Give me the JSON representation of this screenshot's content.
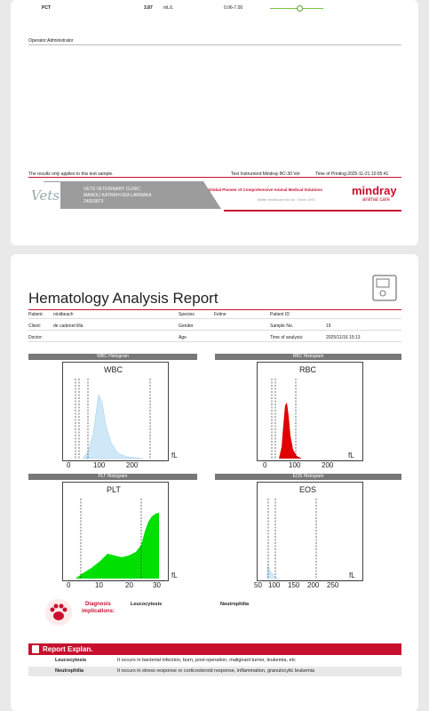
{
  "page1": {
    "pct_row": {
      "name": "PCT",
      "value": "3.87",
      "unit": "mL/L",
      "range": "0.06-7.00",
      "level": 0.55
    },
    "operator": "Operator:Administrator",
    "disclaimer": "The results only applies to this test sample.",
    "instrument": "Test Instrument:Mindray BC-30 Vet",
    "printing_time": "Time of Printing:2025-11-21 10:05:41",
    "clinic_line1": "VETS VETERINARY CLINIC",
    "clinic_line2": "MANOLI KATRAHI 82A LARNAKA",
    "clinic_line3": "24053873",
    "logo_text": "Vets",
    "tagline": "Global Pioneer of Comprehensive Animal Medical Solutions",
    "tagline2": "Better healthcare for all · Since 1991",
    "brand": "mindray",
    "brand_sub": "animal care"
  },
  "page2": {
    "title": "Hematology Analysis Report",
    "info": {
      "patient_label": "Patient:",
      "patient": "niniibeach",
      "client_label": "Client:",
      "client": "de cadenet lilla",
      "doctor_label": "Doctor:",
      "species_label": "Species",
      "species": "Feline",
      "gender_label": "Gender",
      "age_label": "Age",
      "patient_id_label": "Patient ID",
      "sample_label": "Sample No.",
      "sample": "19",
      "time_label": "Time of analysis:",
      "time": "2025/11/16 15:13"
    },
    "histograms": {
      "wbc": {
        "header": "WBC Histogram",
        "title": "WBC",
        "ticks": [
          "0",
          "100",
          "200"
        ],
        "unit": "fL"
      },
      "rbc": {
        "header": "RBC Histogram",
        "title": "RBC",
        "ticks": [
          "0",
          "100",
          "200"
        ],
        "unit": "fL"
      },
      "plt": {
        "header": "PLT Histogram",
        "title": "PLT",
        "ticks": [
          "0",
          "10",
          "20",
          "30"
        ],
        "unit": "fL"
      },
      "eos": {
        "header": "EOS Histogram",
        "title": "EOS",
        "ticks": [
          "50",
          "100",
          "150",
          "200",
          "250"
        ],
        "unit": "fL"
      }
    },
    "diagnosis": {
      "label_line1": "Diagnosis",
      "label_line2": "implications:",
      "item1": "Leucocytosis",
      "item2": "Neutrophilia"
    },
    "explan": {
      "title": "Report Explan.",
      "rows": [
        {
          "term": "Leucocytosis",
          "text": "It occurs in bacterial infection, burn, post-operation, malignant tumor, leukemia, etc"
        },
        {
          "term": "Neutrophilia",
          "text": "It occurs in stress response or corticosteroid response, inflammation, granulocytic leukemia"
        }
      ]
    },
    "colors": {
      "accent": "#c8102e",
      "wbc_fill": "#cfe8f8",
      "rbc_fill": "#e00000",
      "plt_fill": "#00e000"
    }
  }
}
